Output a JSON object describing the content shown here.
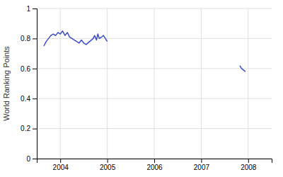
{
  "chart_data": {
    "type": "line",
    "ylabel": "World Ranking Points",
    "xlim": [
      2003.5,
      2008.5
    ],
    "ylim": [
      0,
      1.0
    ],
    "xticks": [
      2004,
      2005,
      2006,
      2007,
      2008
    ],
    "yticks": [
      0,
      0.2,
      0.4,
      0.6,
      0.8,
      1
    ],
    "grid": true,
    "series": [
      {
        "color": "#3a4dcc",
        "x": [
          2003.65,
          2003.7,
          2003.75,
          2003.8,
          2003.85,
          2003.9,
          2003.95,
          2004.0,
          2004.05,
          2004.1,
          2004.15,
          2004.2,
          2004.25,
          2004.3,
          2004.35,
          2004.4,
          2004.45,
          2004.5,
          2004.55,
          2004.7,
          2004.73,
          2004.77,
          2004.8,
          2004.83,
          2004.88,
          2004.92,
          2004.96,
          2005.0
        ],
        "values": [
          0.75,
          0.78,
          0.8,
          0.82,
          0.83,
          0.82,
          0.84,
          0.83,
          0.85,
          0.82,
          0.84,
          0.81,
          0.8,
          0.79,
          0.78,
          0.77,
          0.79,
          0.77,
          0.76,
          0.8,
          0.82,
          0.79,
          0.83,
          0.8,
          0.81,
          0.82,
          0.8,
          0.78
        ]
      },
      {
        "color": "#3a4dcc",
        "x": [
          2007.82,
          2007.86,
          2007.9,
          2007.94
        ],
        "values": [
          0.62,
          0.6,
          0.59,
          0.58
        ]
      }
    ]
  }
}
